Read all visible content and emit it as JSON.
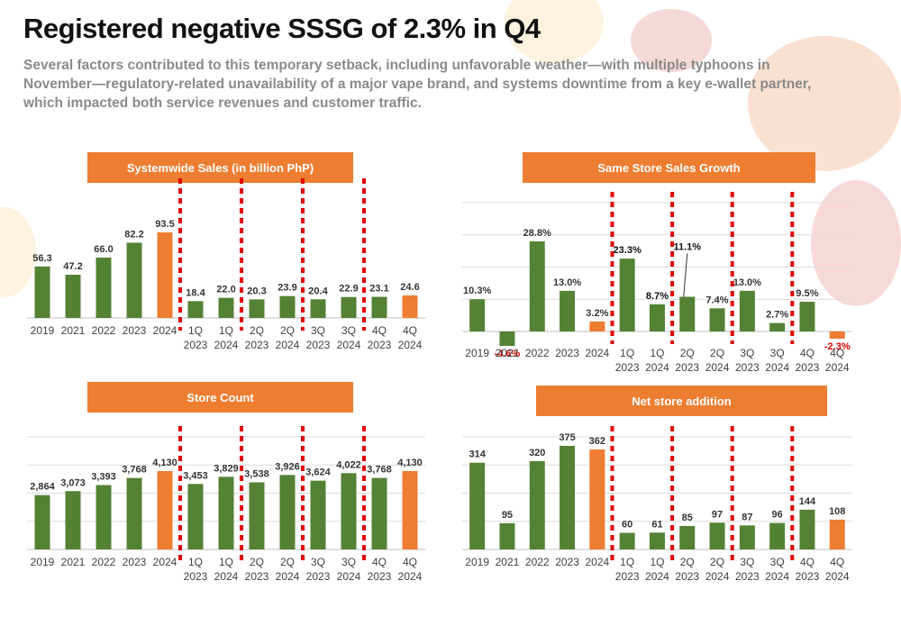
{
  "page": {
    "title": "Registered negative SSSG of 2.3% in Q4",
    "subtitle": "Several factors contributed to this temporary setback, including unfavorable weather—with multiple typhoons in November—regulatory-related unavailability of a major vape brand, and systems downtime from a key e-wallet partner, which impacted both service revenues and customer traffic."
  },
  "colors": {
    "bar_green": "#548235",
    "bar_orange": "#ed7d31",
    "banner_orange": "#ed7d31",
    "divider_red": "#e00000",
    "negative_label": "#e00000"
  },
  "categories": [
    [
      "2019"
    ],
    [
      "2021"
    ],
    [
      "2022"
    ],
    [
      "2023"
    ],
    [
      "2024"
    ],
    [
      "1Q",
      "2023"
    ],
    [
      "1Q",
      "2024"
    ],
    [
      "2Q",
      "2023"
    ],
    [
      "2Q",
      "2024"
    ],
    [
      "3Q",
      "2023"
    ],
    [
      "3Q",
      "2024"
    ],
    [
      "4Q",
      "2023"
    ],
    [
      "4Q",
      "2024"
    ]
  ],
  "chart_data": [
    {
      "type": "bar",
      "title": "Systemwide Sales (in billion PhP)",
      "values": [
        56.3,
        47.2,
        66.0,
        82.2,
        93.5,
        18.4,
        22.0,
        20.3,
        23.9,
        20.4,
        22.9,
        23.1,
        24.6
      ],
      "labels": [
        "56.3",
        "47.2",
        "66.0",
        "82.2",
        "93.5",
        "18.4",
        "22.0",
        "20.3",
        "23.9",
        "20.4",
        "22.9",
        "23.1",
        "24.6"
      ],
      "highlight": [
        4,
        12
      ],
      "dividers_after": [
        4,
        6,
        8,
        10
      ],
      "grid": false
    },
    {
      "type": "bar",
      "title": "Same Store Sales Growth",
      "values": [
        10.3,
        -4.6,
        28.8,
        13.0,
        3.2,
        23.3,
        8.7,
        11.1,
        7.4,
        13.0,
        2.7,
        9.5,
        -2.3
      ],
      "labels": [
        "10.3%",
        "-4.6%",
        "28.8%",
        "13.0%",
        "3.2%",
        "23.3%",
        "8.7%",
        "11.1%",
        "7.4%",
        "13.0%",
        "2.7%",
        "9.5%",
        "-2.3%"
      ],
      "highlight": [
        4,
        12
      ],
      "dividers_after": [
        4,
        6,
        8,
        10
      ],
      "bold_labels": [
        5,
        6,
        7
      ],
      "red_labels": [
        1,
        12
      ],
      "callout_label": 7,
      "grid": true
    },
    {
      "type": "bar",
      "title": "Store Count",
      "values": [
        2864,
        3073,
        3393,
        3768,
        4130,
        3453,
        3829,
        3538,
        3926,
        3624,
        4022,
        3768,
        4130
      ],
      "labels": [
        "2,864",
        "3,073",
        "3,393",
        "3,768",
        "4,130",
        "3,453",
        "3,829",
        "3,538",
        "3,926",
        "3,624",
        "4,022",
        "3,768",
        "4,130"
      ],
      "highlight": [
        4,
        12
      ],
      "dividers_after": [
        4,
        6,
        8,
        10
      ],
      "grid": true
    },
    {
      "type": "bar",
      "title": "Net store addition",
      "values": [
        314,
        95,
        320,
        375,
        362,
        60,
        61,
        85,
        97,
        87,
        96,
        144,
        108
      ],
      "labels": [
        "314",
        "95",
        "320",
        "375",
        "362",
        "60",
        "61",
        "85",
        "97",
        "87",
        "96",
        "144",
        "108"
      ],
      "highlight": [
        4,
        12
      ],
      "dividers_after": [
        4,
        6,
        8,
        10
      ],
      "grid": true
    }
  ]
}
